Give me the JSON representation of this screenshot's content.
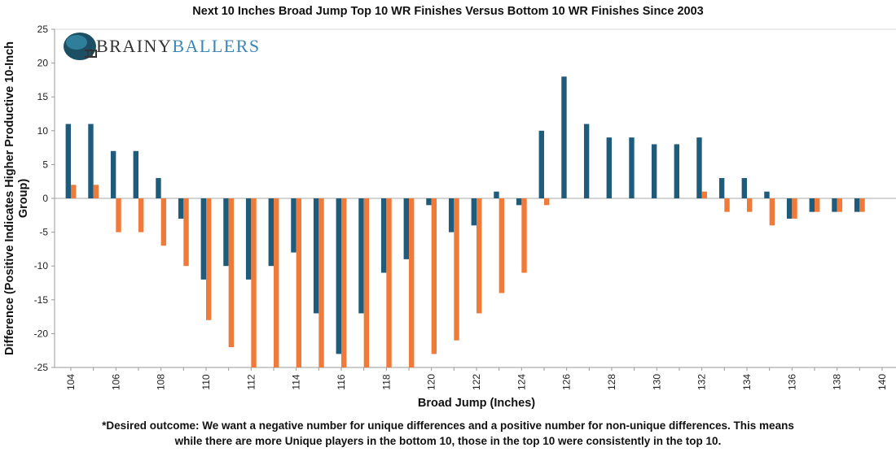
{
  "chart_data": {
    "type": "bar",
    "title": "Next 10 Inches Broad Jump Top 10 WR Finishes Versus Bottom 10 WR Finishes Since 2003",
    "xlabel": "Broad Jump (Inches)",
    "ylabel": "Difference (Positive Indicates Higher Productive 10-Inch Group)",
    "ylim": [
      -25,
      25
    ],
    "yticks": [
      25,
      20,
      15,
      10,
      5,
      0,
      -5,
      -10,
      -15,
      -20,
      -25
    ],
    "categories": [
      104,
      105,
      106,
      107,
      108,
      109,
      110,
      111,
      112,
      113,
      114,
      115,
      116,
      117,
      118,
      119,
      120,
      121,
      122,
      123,
      124,
      125,
      126,
      127,
      128,
      129,
      130,
      131,
      132,
      133,
      134,
      135,
      136,
      137,
      138,
      139,
      140
    ],
    "xtick_labels": [
      "104",
      "106",
      "108",
      "110",
      "112",
      "114",
      "116",
      "118",
      "120",
      "122",
      "124",
      "126",
      "128",
      "130",
      "132",
      "134",
      "136",
      "138",
      "140"
    ],
    "series": [
      {
        "color": "#1f5b7a",
        "values": [
          11,
          11,
          7,
          7,
          3,
          -3,
          -12,
          -10,
          -12,
          -10,
          -8,
          -17,
          -23,
          -17,
          -11,
          -9,
          -1,
          -5,
          -4,
          1,
          -1,
          10,
          18,
          11,
          9,
          9,
          8,
          8,
          9,
          3,
          3,
          1,
          -3,
          -2,
          -2,
          -2,
          0
        ]
      },
      {
        "color": "#f07a3a",
        "values": [
          2,
          2,
          -5,
          -5,
          -7,
          -10,
          -18,
          -22,
          -25,
          -25,
          -25,
          -25,
          -25,
          -25,
          -25,
          -25,
          -23,
          -21,
          -17,
          -14,
          -11,
          -1,
          0,
          0,
          0,
          0,
          0,
          0,
          1,
          -2,
          -2,
          -4,
          -3,
          -2,
          -2,
          -2,
          0
        ]
      }
    ],
    "grid": false,
    "legend": "none"
  },
  "logo": {
    "text_part1": "BRAINY",
    "text_part2": "BALLERS",
    "color1": "#333333",
    "color2": "#3b86b4"
  },
  "footnote": {
    "line1": "*Desired outcome: We want a negative number for unique differences and a positive number for non-unique differences. This means",
    "line2": "while there are more Unique players in the bottom 10, those in the top 10 were consistently in the top 10."
  }
}
